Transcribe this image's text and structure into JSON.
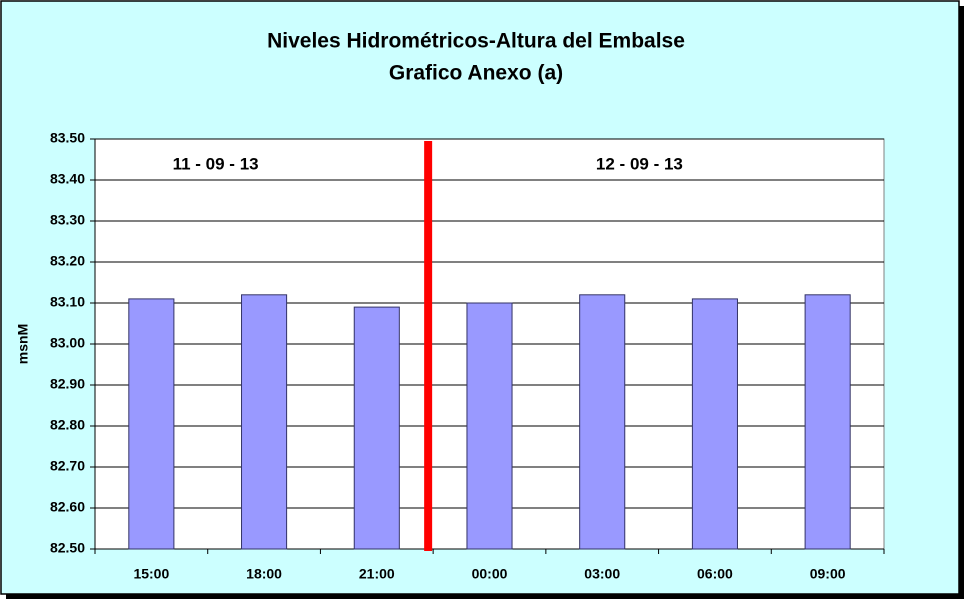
{
  "chart_data": {
    "type": "bar",
    "title": "Niveles Hidrométricos-Altura del Embalse",
    "subtitle": "Grafico Anexo (a)",
    "y_label": "msnM",
    "annotations": [
      "11 - 09 - 13",
      "12 - 09 - 13"
    ],
    "categories": [
      "15:00",
      "18:00",
      "21:00",
      "00:00",
      "03:00",
      "06:00",
      "09:00"
    ],
    "values": [
      83.11,
      83.12,
      83.09,
      83.1,
      83.12,
      83.11,
      83.12
    ],
    "color": "#9999ff",
    "ylim": [
      82.5,
      83.5
    ],
    "yticks": [
      {
        "value": 82.5,
        "label": "82.50"
      },
      {
        "value": 82.6,
        "label": "82.60"
      },
      {
        "value": 82.7,
        "label": "82.70"
      },
      {
        "value": 82.8,
        "label": "82.80"
      },
      {
        "value": 82.9,
        "label": "82.90"
      },
      {
        "value": 83.0,
        "label": "83.00"
      },
      {
        "value": 83.1,
        "label": "83.10"
      },
      {
        "value": 83.2,
        "label": "83.20"
      },
      {
        "value": 83.3,
        "label": "83.30"
      },
      {
        "value": 83.4,
        "label": "83.40"
      },
      {
        "value": 83.5,
        "label": "83.50"
      }
    ],
    "grid": true
  }
}
